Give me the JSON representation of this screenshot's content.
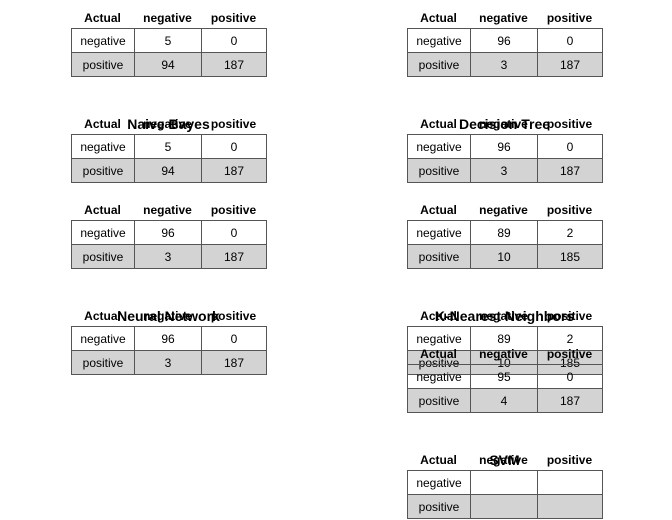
{
  "chart_data": {
    "type": "table",
    "header": [
      "Actual",
      "negative",
      "positive"
    ],
    "tables": [
      {
        "rows": [
          [
            "negative",
            "5",
            "0"
          ],
          [
            "positive",
            "94",
            "187"
          ]
        ]
      },
      {
        "title": "Naive Bayes",
        "rows": [
          [
            "negative",
            "5",
            "0"
          ],
          [
            "positive",
            "94",
            "187"
          ]
        ]
      },
      {
        "rows": [
          [
            "negative",
            "96",
            "0"
          ],
          [
            "positive",
            "3",
            "187"
          ]
        ]
      },
      {
        "title": "Neural Network",
        "rows": [
          [
            "negative",
            "96",
            "0"
          ],
          [
            "positive",
            "3",
            "187"
          ]
        ]
      },
      {
        "rows": [
          [
            "negative",
            "96",
            "0"
          ],
          [
            "positive",
            "3",
            "187"
          ]
        ]
      },
      {
        "title": "Decision Tree",
        "rows": [
          [
            "negative",
            "96",
            "0"
          ],
          [
            "positive",
            "3",
            "187"
          ]
        ]
      },
      {
        "rows": [
          [
            "negative",
            "89",
            "2"
          ],
          [
            "positive",
            "10",
            "185"
          ]
        ]
      },
      {
        "title": "K-Nearest Neighbors",
        "rows": [
          [
            "negative",
            "89",
            "2"
          ],
          [
            "positive",
            "10",
            "185"
          ]
        ]
      },
      {
        "rows": [
          [
            "negative",
            "95",
            "0"
          ],
          [
            "positive",
            "4",
            "187"
          ]
        ]
      },
      {
        "title": "SVM",
        "rows": [
          [
            "negative",
            "",
            ""
          ],
          [
            "positive",
            "",
            ""
          ]
        ]
      }
    ]
  }
}
